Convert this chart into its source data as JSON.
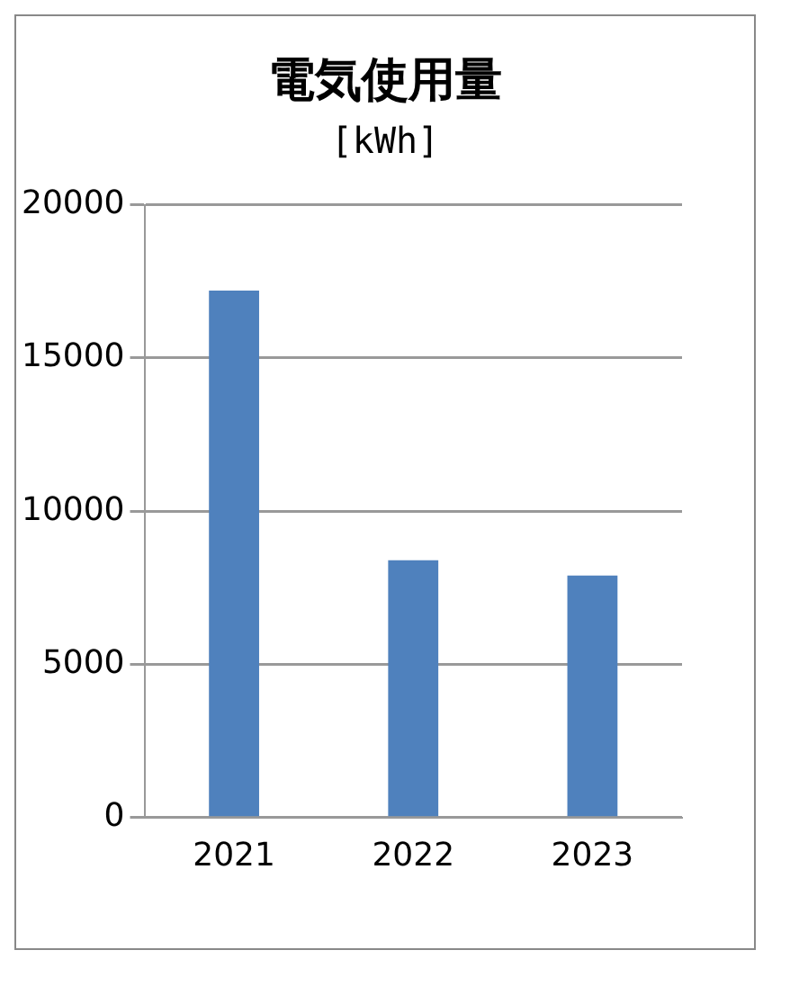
{
  "chart_data": {
    "type": "bar",
    "title": "電気使用量",
    "subtitle": "[kWh]",
    "categories": [
      "2021",
      "2022",
      "2023"
    ],
    "values": [
      17200,
      8400,
      7900
    ],
    "color": "#4f81bd",
    "ylim": [
      0,
      20000
    ],
    "yticks": [
      0,
      5000,
      10000,
      15000,
      20000
    ],
    "grid": "y",
    "legend": false
  }
}
